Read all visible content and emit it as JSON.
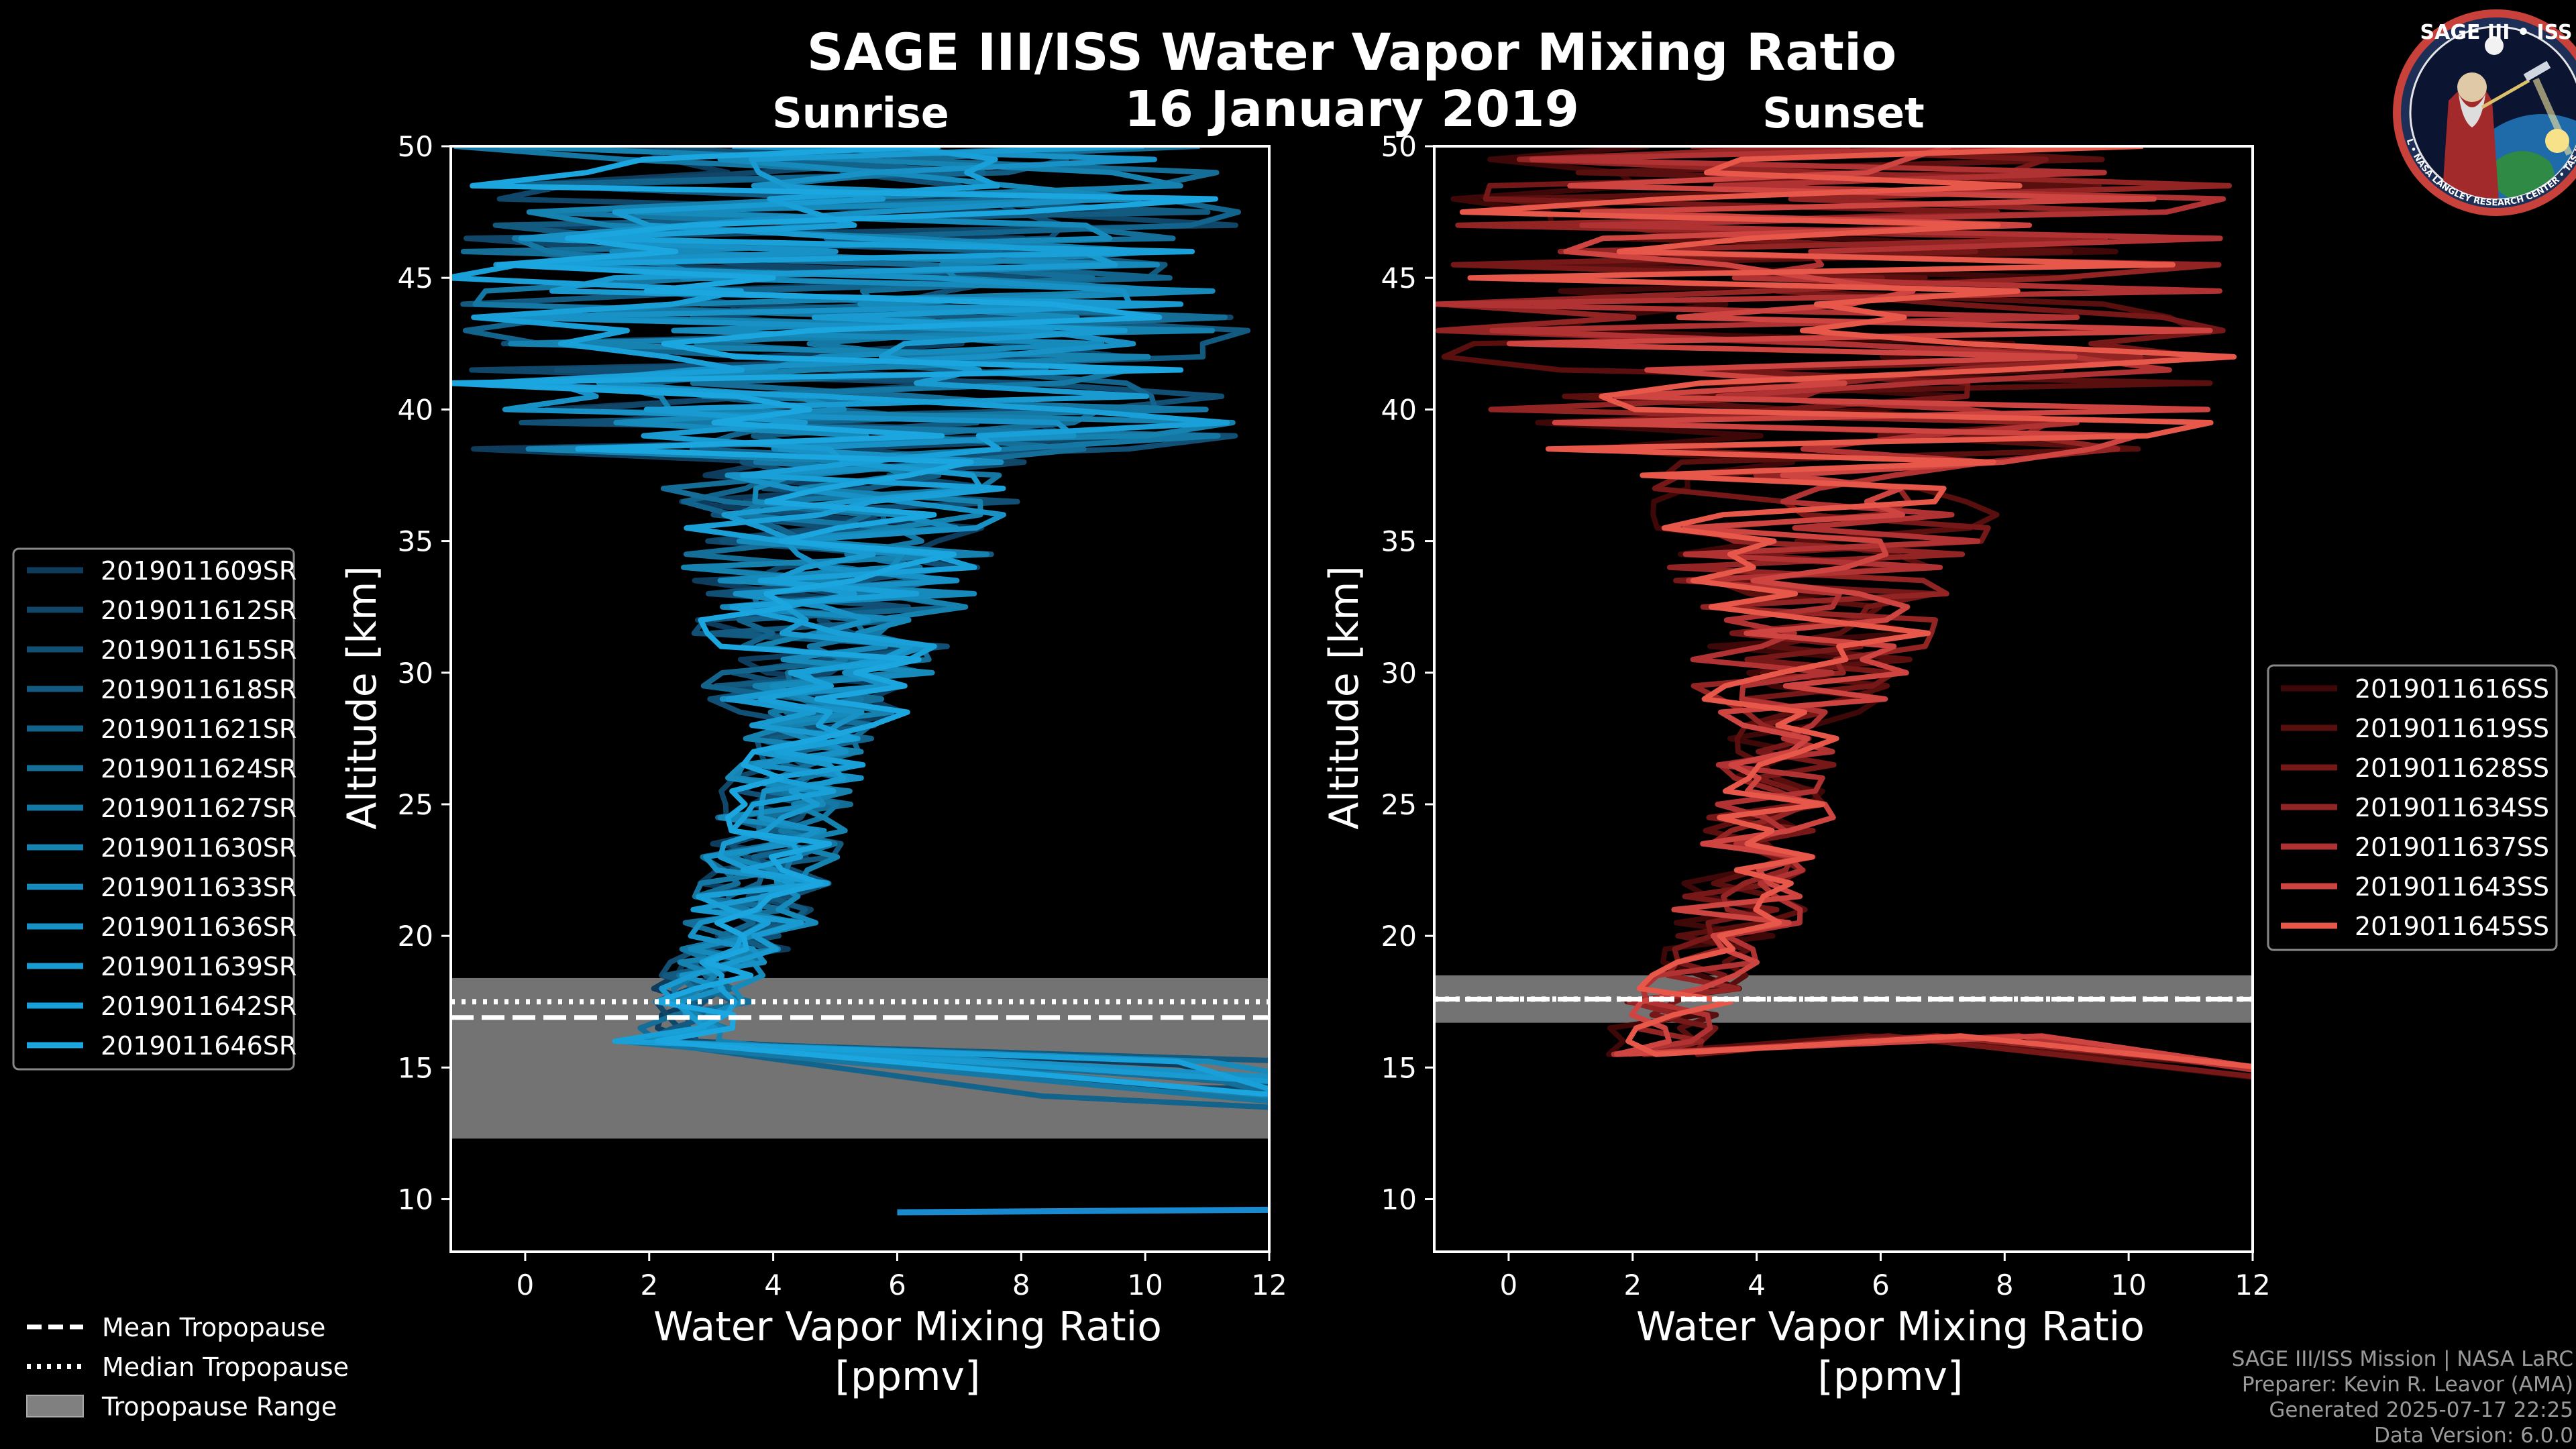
{
  "title": "SAGE III/ISS Water Vapor Mixing Ratio",
  "date": "16 January 2019",
  "logo": {
    "top": "SAGE III • ISS",
    "ring": "BALL • NASA LANGLEY RESEARCH CENTER • TAS-I • ESA"
  },
  "footer": {
    "line1": "SAGE III/ISS Mission | NASA LaRC",
    "line2": "Preparer: Kevin R. Leavor (AMA)",
    "line3": "Generated 2025-07-17 22:25",
    "line4": "Data Version: 6.0.0"
  },
  "tropopause_legend": {
    "mean": "Mean Tropopause",
    "median": "Median Tropopause",
    "range": "Tropopause Range"
  },
  "colors": {
    "sunrise": "#1a8ad0",
    "sunset": "#e8584a",
    "tropo_band": "#808080"
  },
  "chart_data": [
    {
      "type": "line",
      "name": "sunrise",
      "title": "Sunrise",
      "xlabel": "Water Vapor Mixing Ratio",
      "xunits": "[ppmv]",
      "ylabel": "Altitude [km]",
      "xlim": [
        -1.2,
        12
      ],
      "ylim": [
        8,
        50
      ],
      "xticks": [
        "0",
        "2",
        "4",
        "6",
        "8",
        "10",
        "12"
      ],
      "yticks": [
        "10",
        "15",
        "20",
        "25",
        "30",
        "35",
        "40",
        "45",
        "50"
      ],
      "xtick_values": [
        0,
        2,
        4,
        6,
        8,
        10,
        12
      ],
      "ytick_values": [
        10,
        15,
        20,
        25,
        30,
        35,
        40,
        45,
        50
      ],
      "tropopause": {
        "mean": 16.9,
        "median": 17.5,
        "range": [
          12.3,
          18.4
        ]
      },
      "series": [
        {
          "name": "2019011609SR",
          "color": "#0e3c5c"
        },
        {
          "name": "2019011612SR",
          "color": "#104668"
        },
        {
          "name": "2019011615SR",
          "color": "#115074"
        },
        {
          "name": "2019011618SR",
          "color": "#125a80"
        },
        {
          "name": "2019011621SR",
          "color": "#13648c"
        },
        {
          "name": "2019011624SR",
          "color": "#146e98"
        },
        {
          "name": "2019011627SR",
          "color": "#1578a4"
        },
        {
          "name": "2019011630SR",
          "color": "#1682b0"
        },
        {
          "name": "2019011633SR",
          "color": "#178abc"
        },
        {
          "name": "2019011636SR",
          "color": "#1892c6"
        },
        {
          "name": "2019011639SR",
          "color": "#199ad0"
        },
        {
          "name": "2019011642SR",
          "color": "#1aa0d8"
        },
        {
          "name": "2019011646SR",
          "color": "#1ba6e0"
        }
      ]
    },
    {
      "type": "line",
      "name": "sunset",
      "title": "Sunset",
      "xlabel": "Water Vapor Mixing Ratio",
      "xunits": "[ppmv]",
      "ylabel": "Altitude [km]",
      "xlim": [
        -1.2,
        12
      ],
      "ylim": [
        8,
        50
      ],
      "xticks": [
        "0",
        "2",
        "4",
        "6",
        "8",
        "10",
        "12"
      ],
      "yticks": [
        "10",
        "15",
        "20",
        "25",
        "30",
        "35",
        "40",
        "45",
        "50"
      ],
      "xtick_values": [
        0,
        2,
        4,
        6,
        8,
        10,
        12
      ],
      "ytick_values": [
        10,
        15,
        20,
        25,
        30,
        35,
        40,
        45,
        50
      ],
      "tropopause": {
        "mean": 17.6,
        "median": 17.6,
        "range": [
          16.7,
          18.5
        ]
      },
      "series": [
        {
          "name": "2019011616SS",
          "color": "#3e0808"
        },
        {
          "name": "2019011619SS",
          "color": "#5a0f0f"
        },
        {
          "name": "2019011628SS",
          "color": "#761818"
        },
        {
          "name": "2019011634SS",
          "color": "#932424"
        },
        {
          "name": "2019011637SS",
          "color": "#b03232"
        },
        {
          "name": "2019011643SS",
          "color": "#cd4440"
        },
        {
          "name": "2019011645SS",
          "color": "#e8584a"
        }
      ]
    }
  ]
}
